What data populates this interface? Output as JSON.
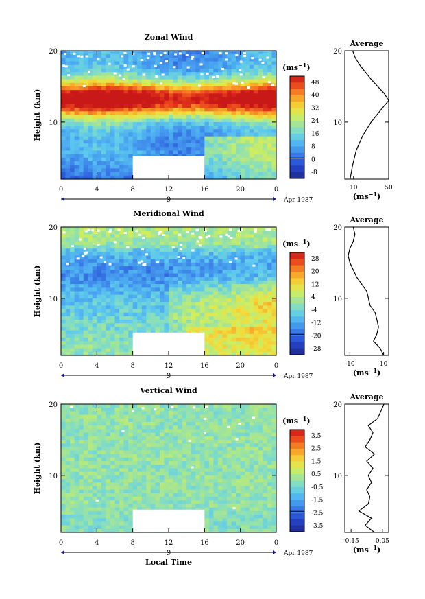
{
  "chart_data": [
    {
      "type": "heatmap",
      "title": "Zonal Wind",
      "ylabel": "Height (km)",
      "x_ticks": [
        "0",
        "4",
        "8",
        "12",
        "16",
        "20",
        "0"
      ],
      "xlim": [
        0,
        24
      ],
      "y_ticks": [
        "10",
        "20"
      ],
      "ylim": [
        2,
        20
      ],
      "date_label": "9",
      "month_label": "Apr 1987",
      "colorbar": {
        "unit": "(ms",
        "unit_sup": "−1",
        "ticks": [
          "48",
          "40",
          "32",
          "24",
          "16",
          "8",
          "0",
          "-8"
        ],
        "range": [
          -12,
          52
        ],
        "colors": [
          "#1f2a8c",
          "#2238b8",
          "#2a58d8",
          "#3b80e8",
          "#4aa6f0",
          "#5cc8ee",
          "#7fdcc8",
          "#a8e690",
          "#d2ee5c",
          "#f2dc3c",
          "#f8b02c",
          "#f47a22",
          "#e8401c",
          "#c81818"
        ]
      },
      "profile": {
        "title": "Average",
        "x_ticks": [
          "10",
          "50"
        ],
        "xlim": [
          0,
          50
        ],
        "xlabel": "(ms",
        "xlabel_sup": "−1",
        "y_ticks": [
          "10",
          "20"
        ],
        "heights": [
          2,
          4,
          6,
          8,
          10,
          12,
          13,
          14,
          16,
          18,
          19,
          20
        ],
        "values": [
          6,
          9,
          13,
          20,
          30,
          43,
          50,
          45,
          30,
          17,
          12,
          9
        ]
      }
    },
    {
      "type": "heatmap",
      "title": "Meridional Wind",
      "ylabel": "Height (km)",
      "x_ticks": [
        "0",
        "4",
        "8",
        "12",
        "16",
        "20",
        "0"
      ],
      "xlim": [
        0,
        24
      ],
      "y_ticks": [
        "10",
        "20"
      ],
      "ylim": [
        2,
        20
      ],
      "date_label": "9",
      "month_label": "Apr 1987",
      "colorbar": {
        "unit": "(ms",
        "unit_sup": "−1",
        "ticks": [
          "28",
          "20",
          "12",
          "4",
          "-4",
          "-12",
          "-20",
          "-28"
        ],
        "range": [
          -32,
          32
        ],
        "colors": [
          "#1f2a8c",
          "#2238b8",
          "#2a58d8",
          "#3b80e8",
          "#4aa6f0",
          "#5cc8ee",
          "#7fdcc8",
          "#a8e690",
          "#d2ee5c",
          "#f2dc3c",
          "#f8b02c",
          "#f47a22",
          "#e8401c",
          "#c81818"
        ]
      },
      "profile": {
        "title": "Average",
        "x_ticks": [
          "-10",
          "10"
        ],
        "xlim": [
          -13,
          13
        ],
        "xlabel": "(ms",
        "xlabel_sup": "−1",
        "y_ticks": [
          "10",
          "20"
        ],
        "heights": [
          2,
          3,
          4,
          5,
          6,
          7,
          8,
          9,
          10,
          11,
          12,
          13,
          14,
          15,
          16,
          17,
          18,
          19,
          20
        ],
        "values": [
          10,
          8,
          4,
          6,
          7,
          6,
          5,
          2,
          1,
          0,
          -3,
          -6,
          -8,
          -10,
          -11,
          -10,
          -8,
          -7,
          -8
        ]
      }
    },
    {
      "type": "heatmap",
      "title": "Vertical Wind",
      "ylabel": "Height (km)",
      "xlabel": "Local Time",
      "x_ticks": [
        "0",
        "4",
        "8",
        "12",
        "16",
        "20",
        "0"
      ],
      "xlim": [
        0,
        24
      ],
      "y_ticks": [
        "10",
        "20"
      ],
      "ylim": [
        2,
        20
      ],
      "date_label": "9",
      "month_label": "Apr 1987",
      "colorbar": {
        "unit": "(ms",
        "unit_sup": "−1",
        "ticks": [
          "3.5",
          "2.5",
          "1.5",
          "0.5",
          "-0.5",
          "-1.5",
          "-2.5",
          "-3.5"
        ],
        "range": [
          -4,
          4
        ],
        "colors": [
          "#1f2a8c",
          "#2238b8",
          "#2a58d8",
          "#3b80e8",
          "#4aa6f0",
          "#5cc8ee",
          "#7fdcc8",
          "#a8e690",
          "#d2ee5c",
          "#f2dc3c",
          "#f8b02c",
          "#f47a22",
          "#e8401c",
          "#c81818"
        ]
      },
      "profile": {
        "title": "Average",
        "x_ticks": [
          "-0.15",
          "0.05"
        ],
        "xlim": [
          -0.19,
          0.09
        ],
        "xlabel": "(ms",
        "xlabel_sup": "−1",
        "y_ticks": [
          "10",
          "20"
        ],
        "heights": [
          2,
          3,
          4,
          5,
          6,
          7,
          8,
          9,
          10,
          11,
          12,
          13,
          14,
          15,
          16,
          17,
          18,
          19,
          20
        ],
        "values": [
          0.0,
          -0.06,
          -0.02,
          -0.1,
          -0.04,
          -0.03,
          -0.05,
          -0.02,
          -0.04,
          -0.01,
          -0.05,
          0.0,
          -0.06,
          -0.03,
          -0.01,
          -0.04,
          0.02,
          0.04,
          0.06
        ]
      }
    }
  ]
}
